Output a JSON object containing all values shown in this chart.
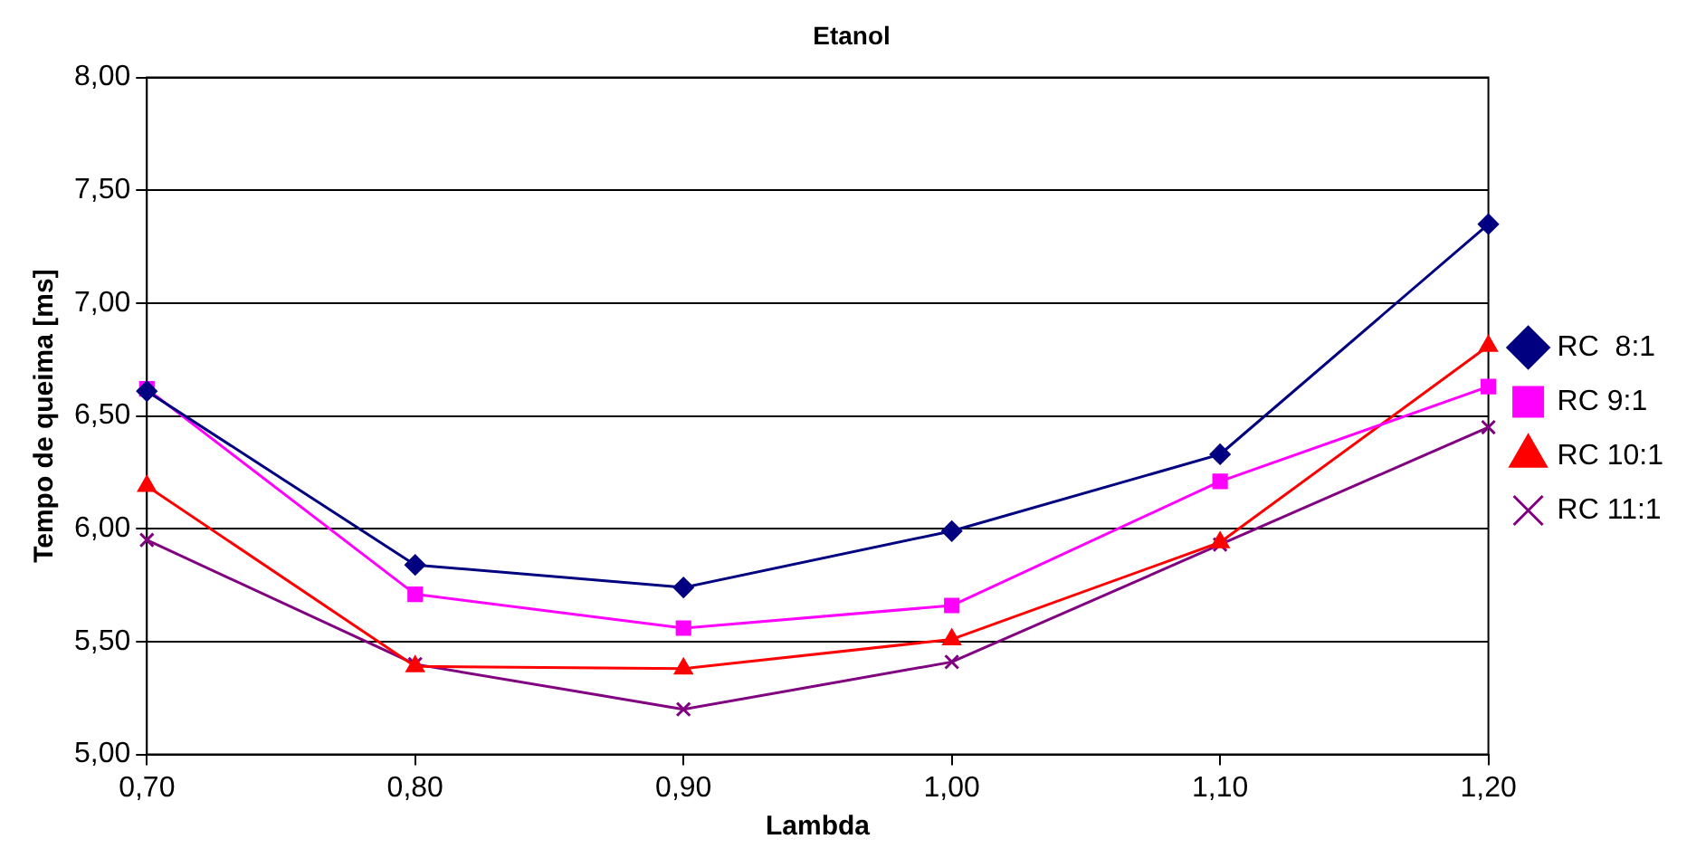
{
  "chart_data": {
    "type": "line",
    "title": "Etanol",
    "xlabel": "Lambda",
    "ylabel": "Tempo de queima [ms]",
    "x": [
      0.7,
      0.8,
      0.9,
      1.0,
      1.1,
      1.2
    ],
    "series": [
      {
        "name": "RC  8:1",
        "color": "#000080",
        "marker": "diamond",
        "values": [
          6.61,
          5.84,
          5.74,
          5.99,
          6.33,
          7.35
        ]
      },
      {
        "name": "RC 9:1",
        "color": "#ff00ff",
        "marker": "square",
        "values": [
          6.62,
          5.71,
          5.56,
          5.66,
          6.21,
          6.63
        ]
      },
      {
        "name": "RC 10:1",
        "color": "#ff0000",
        "marker": "triangle",
        "values": [
          6.19,
          5.39,
          5.38,
          5.51,
          5.94,
          6.81
        ]
      },
      {
        "name": "RC 11:1",
        "color": "#800080",
        "marker": "cross",
        "values": [
          5.95,
          5.4,
          5.2,
          5.41,
          5.93,
          6.45
        ]
      }
    ],
    "xlim": [
      0.7,
      1.2
    ],
    "xticks": [
      {
        "value": 0.7,
        "label": "0,70"
      },
      {
        "value": 0.8,
        "label": "0,80"
      },
      {
        "value": 0.9,
        "label": "0,90"
      },
      {
        "value": 1.0,
        "label": "1,00"
      },
      {
        "value": 1.1,
        "label": "1,10"
      },
      {
        "value": 1.2,
        "label": "1,20"
      }
    ],
    "ylim": [
      5,
      8
    ],
    "yticks": [
      {
        "value": 5,
        "label": "5,00"
      },
      {
        "value": 5.5,
        "label": "5,50"
      },
      {
        "value": 6,
        "label": "6,00"
      },
      {
        "value": 6.5,
        "label": "6,50"
      },
      {
        "value": 7,
        "label": "7,00"
      },
      {
        "value": 7.5,
        "label": "7,50"
      },
      {
        "value": 8,
        "label": "8,00"
      }
    ],
    "grid": "y",
    "legend": "right",
    "line_style": "solid"
  }
}
